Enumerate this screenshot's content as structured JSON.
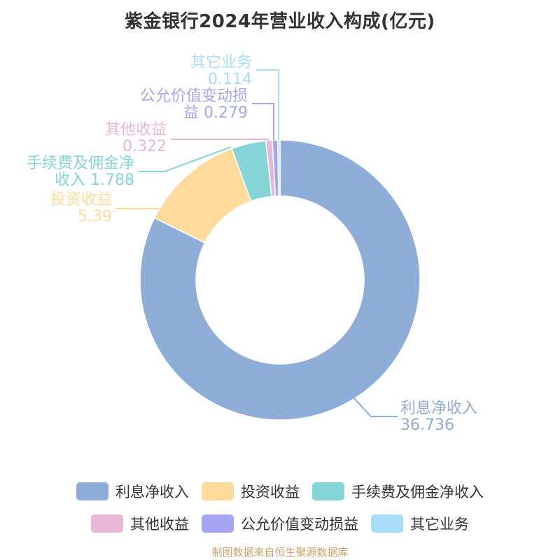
{
  "chart_data": {
    "type": "pie",
    "title": "紫金银行2024年营业收入构成(亿元)",
    "slices": [
      {
        "name": "利息净收入",
        "value": 36.736,
        "label_lines": [
          "利息净收入",
          "36.736"
        ],
        "color": "#8eadd8"
      },
      {
        "name": "投资收益",
        "value": 5.39,
        "label_lines": [
          "投资收益",
          "5.39"
        ],
        "color": "#fedb9b"
      },
      {
        "name": "手续费及佣金净收入",
        "value": 1.788,
        "label_lines": [
          "手续费及佣金净",
          "收入 1.788"
        ],
        "color": "#85d4d8"
      },
      {
        "name": "其他收益",
        "value": 0.322,
        "label_lines": [
          "其他收益",
          "0.322"
        ],
        "color": "#e8b7d8"
      },
      {
        "name": "公允价值变动损益",
        "value": 0.279,
        "label_lines": [
          "公允价值变动损",
          "益 0.279"
        ],
        "color": "#a5a5f4"
      },
      {
        "name": "其它业务",
        "value": 0.114,
        "label_lines": [
          "其它业务",
          "0.114"
        ],
        "color": "#a8dcf8"
      }
    ],
    "legend_position": "bottom"
  },
  "legend": {
    "items": [
      {
        "label": "利息净收入",
        "color": "#8eadd8"
      },
      {
        "label": "投资收益",
        "color": "#fedb9b"
      },
      {
        "label": "手续费及佣金净收入",
        "color": "#85d4d8"
      },
      {
        "label": "其他收益",
        "color": "#e8b7d8"
      },
      {
        "label": "公允价值变动损益",
        "color": "#a5a5f4"
      },
      {
        "label": "其它业务",
        "color": "#a8dcf8"
      }
    ]
  },
  "source": "制图数据来自恒生聚源数据库"
}
